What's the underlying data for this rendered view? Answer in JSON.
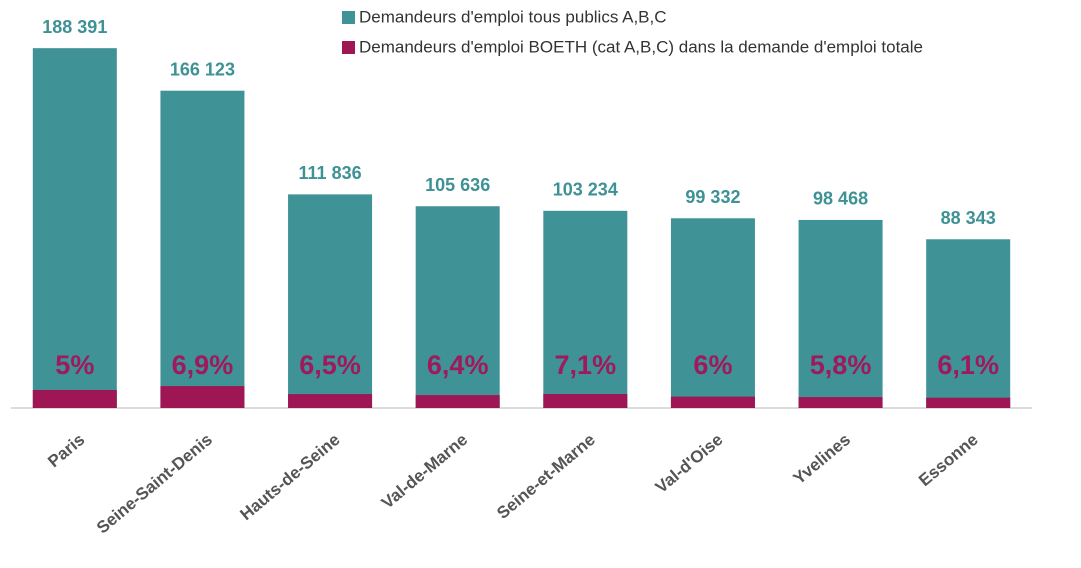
{
  "chart_data": {
    "type": "overlap_bar",
    "categories": [
      "Paris",
      "Seine-Saint-Denis",
      "Hauts-de-Seine",
      "Val-de-Marne",
      "Seine-et-Marne",
      "Val-d'Oise",
      "Yvelines",
      "Essonne"
    ],
    "series": [
      {
        "name": "Demandeurs d'emploi tous publics A,B,C",
        "color": "#3f9296",
        "values": [
          188391,
          166123,
          111836,
          105636,
          103234,
          99332,
          98468,
          88343
        ],
        "value_labels": [
          "188 391",
          "166 123",
          "111 836",
          "105 636",
          "103 234",
          "99 332",
          "98 468",
          "88 343"
        ]
      },
      {
        "name": "Demandeurs d'emploi BOETH (cat A,B,C) dans la demande d'emploi totale",
        "color": "#9e1654",
        "values": [
          9420,
          11462,
          7269,
          6761,
          7330,
          5960,
          5711,
          5389
        ]
      }
    ],
    "share_labels": [
      "5%",
      "6,9%",
      "6,5%",
      "6,4%",
      "7,1%",
      "6%",
      "5,8%",
      "6,1%"
    ],
    "ylim": [
      0,
      200000
    ],
    "legend": "top"
  }
}
